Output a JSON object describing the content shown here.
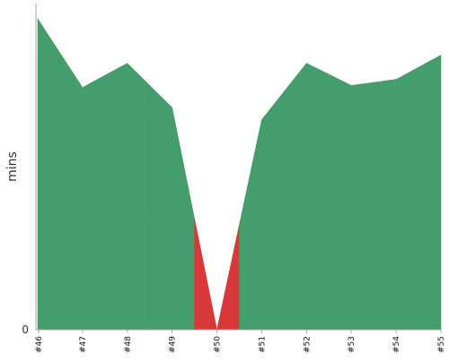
{
  "chart_data": {
    "type": "area",
    "ylabel": "mins",
    "y_ticks": [
      "0"
    ],
    "ylim": [
      0,
      77
    ],
    "categories": [
      "#46",
      "#47",
      "#48",
      "#49",
      "#50",
      "#51",
      "#52",
      "#53",
      "#54",
      "#55"
    ],
    "values": [
      77,
      60,
      66,
      55,
      0,
      52,
      66,
      60.5,
      62,
      68
    ],
    "normal_color": "#449d6c",
    "failure_color": "#d9383a",
    "failure_categories": [
      "#50"
    ]
  }
}
